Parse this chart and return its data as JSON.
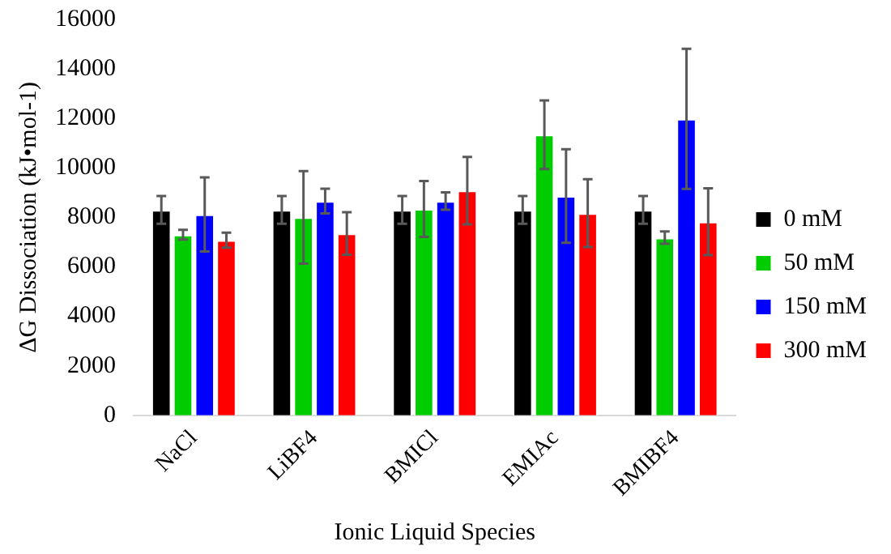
{
  "chart_data": {
    "type": "bar",
    "xlabel": "Ionic Liquid Species",
    "ylabel": "ΔG Dissociation (kJ•mol-1)",
    "categories": [
      "NaCl",
      "LiBF4",
      "BMICl",
      "EMIAc",
      "BMIBF4"
    ],
    "series": [
      {
        "name": "0 mM",
        "color": "#000000",
        "values": [
          8300,
          8300,
          8300,
          8300,
          8300
        ],
        "errors": [
          560,
          560,
          560,
          560,
          560
        ]
      },
      {
        "name": "50 mM",
        "color": "#00cc00",
        "values": [
          7300,
          8000,
          8340,
          11340,
          7180
        ],
        "errors": [
          200,
          1870,
          1130,
          1390,
          250
        ]
      },
      {
        "name": "150 mM",
        "color": "#0000ff",
        "values": [
          8120,
          8660,
          8660,
          8860,
          11980
        ],
        "errors": [
          1500,
          500,
          350,
          1890,
          2830
        ]
      },
      {
        "name": "300 mM",
        "color": "#ff0000",
        "values": [
          7080,
          7350,
          9080,
          8170,
          7820
        ],
        "errors": [
          300,
          860,
          1360,
          1370,
          1350
        ]
      }
    ],
    "ylim": [
      0,
      16000
    ],
    "yticks": [
      0,
      2000,
      4000,
      6000,
      8000,
      10000,
      12000,
      14000,
      16000
    ],
    "grid": false,
    "legend": "right"
  }
}
